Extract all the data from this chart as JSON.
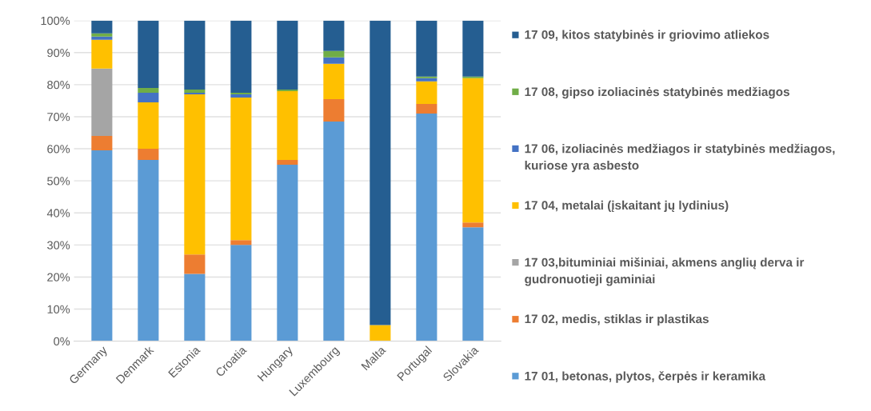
{
  "chart_data": {
    "type": "bar",
    "stacked": true,
    "categories": [
      "Germany",
      "Denmark",
      "Estonia",
      "Croatia",
      "Hungary",
      "Luxembourg",
      "Malta",
      "Portugal",
      "Slovakia"
    ],
    "series": [
      {
        "name": "17 01, betonas, plytos, čerpės ir keramika",
        "color": "#5b9bd5",
        "values": [
          59.5,
          56.5,
          21,
          30,
          55,
          68.5,
          0,
          71,
          35.5
        ]
      },
      {
        "name": "17 02, medis, stiklas ir plastikas",
        "color": "#ed7d31",
        "values": [
          4.5,
          3.5,
          6,
          1.5,
          1.5,
          7,
          0,
          3,
          1.5
        ]
      },
      {
        "name": "17 03,bituminiai mišiniai, akmens anglių derva ir gudronuotieji gaminiai",
        "color": "#a5a5a5",
        "values": [
          21,
          0,
          0,
          0,
          0,
          0,
          0,
          0,
          0
        ]
      },
      {
        "name": "17 04, metalai (įskaitant jų lydinius)",
        "color": "#ffc000",
        "values": [
          9,
          14.5,
          50,
          44.5,
          21.5,
          11,
          5,
          7,
          45
        ]
      },
      {
        "name": "17 06, izoliacinės medžiagos ir statybinės medžiagos, kuriose yra asbesto",
        "color": "#4472c4",
        "values": [
          1,
          3,
          0.5,
          1,
          0,
          2,
          0,
          1,
          0
        ]
      },
      {
        "name": "17 08, gipso izoliacinės statybinės medžiagos",
        "color": "#70ad47",
        "values": [
          1,
          1.5,
          1,
          0.5,
          0.5,
          2,
          0,
          0.5,
          0.5
        ]
      },
      {
        "name": "17 09, kitos statybinės ir griovimo atliekos",
        "color": "#255e91",
        "values": [
          4,
          21,
          21.5,
          22.5,
          21.5,
          9.5,
          95,
          17.5,
          17.5
        ]
      }
    ],
    "ylim": [
      0,
      100
    ],
    "yticks": [
      {
        "value": 0,
        "label": "0%"
      },
      {
        "value": 10,
        "label": "10%"
      },
      {
        "value": 20,
        "label": "20%"
      },
      {
        "value": 30,
        "label": "30%"
      },
      {
        "value": 40,
        "label": "40%"
      },
      {
        "value": 50,
        "label": "50%"
      },
      {
        "value": 60,
        "label": "60%"
      },
      {
        "value": 70,
        "label": "70%"
      },
      {
        "value": 80,
        "label": "80%"
      },
      {
        "value": 90,
        "label": "90%"
      },
      {
        "value": 100,
        "label": "100%"
      }
    ],
    "grid": "y",
    "legend": "right"
  }
}
